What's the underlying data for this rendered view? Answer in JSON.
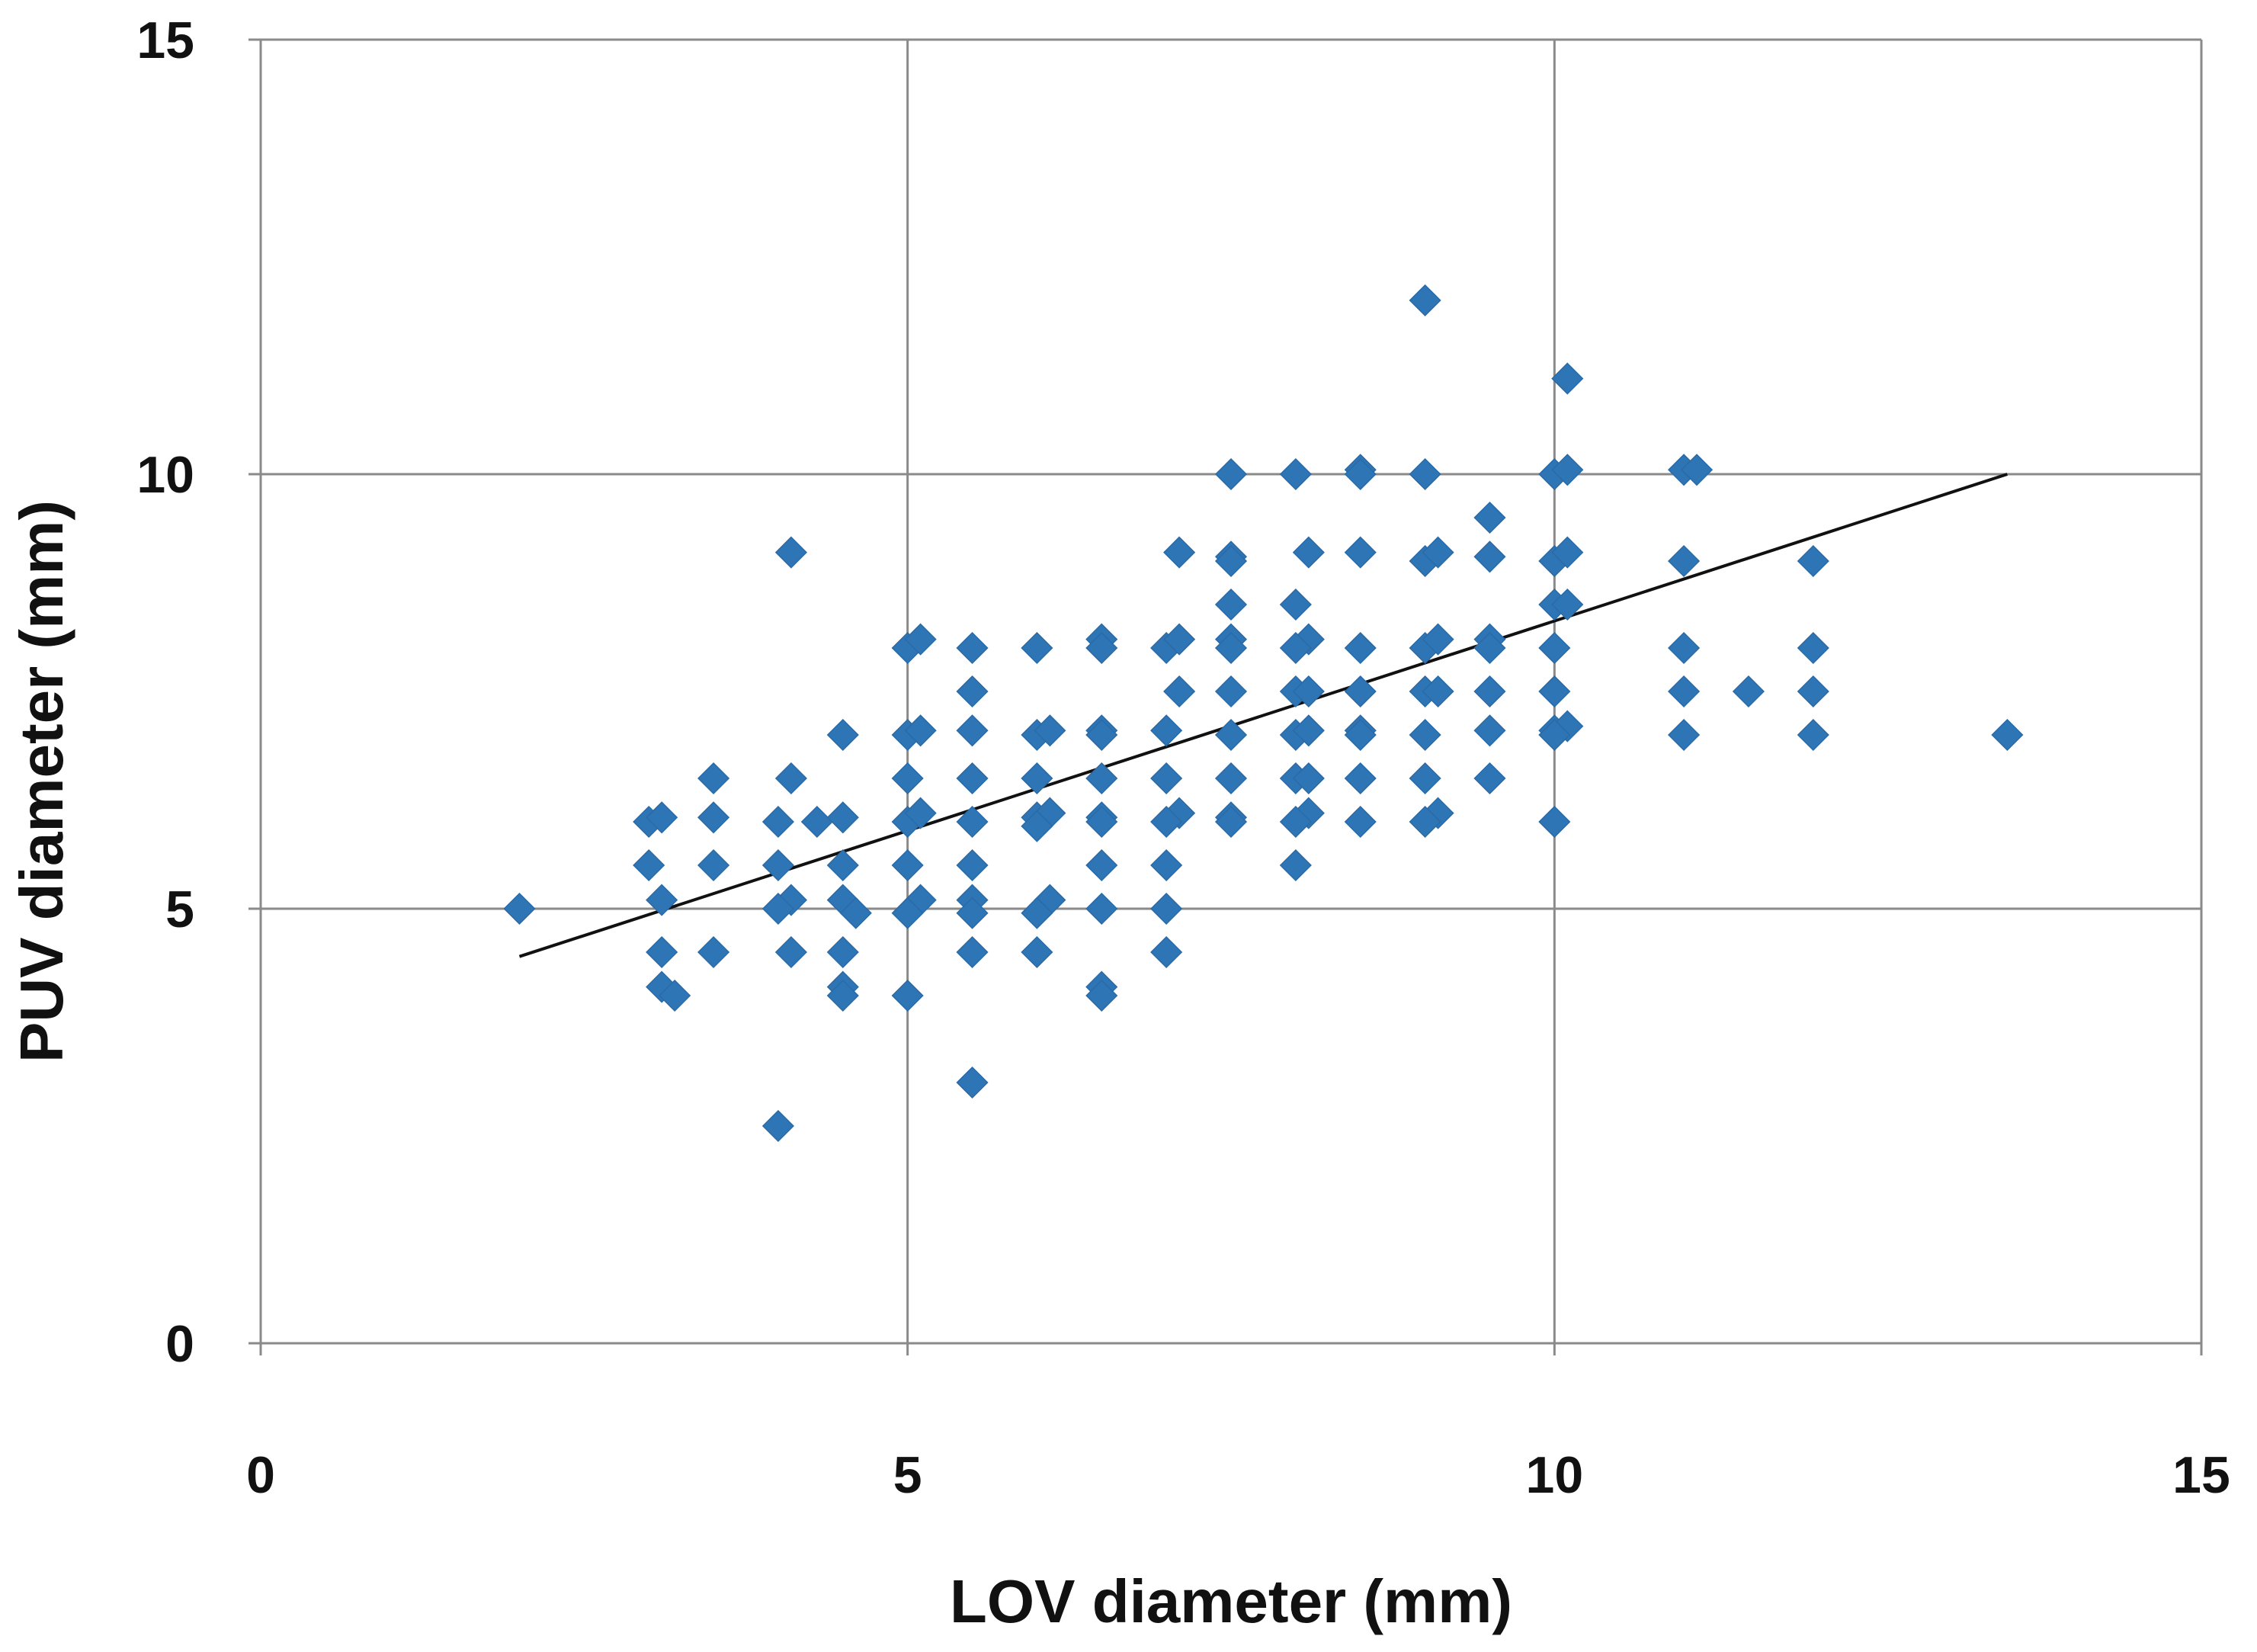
{
  "chart_data": {
    "type": "scatter",
    "xlabel": "LOV diameter  (mm)",
    "ylabel": "PUV diameter  (mm)",
    "xlim": [
      0,
      15
    ],
    "ylim": [
      0,
      15
    ],
    "x_ticks": [
      "0",
      "5",
      "10",
      "15"
    ],
    "y_ticks": [
      "0",
      "5",
      "10",
      "15"
    ],
    "grid": true,
    "marker": "diamond",
    "marker_color": "#2E75B6",
    "trendline": {
      "x": [
        2.0,
        13.5
      ],
      "y": [
        4.45,
        10.0
      ]
    },
    "points": [
      [
        2.0,
        5.0
      ],
      [
        3.0,
        6.0
      ],
      [
        3.1,
        6.05
      ],
      [
        3.0,
        5.5
      ],
      [
        3.1,
        5.1
      ],
      [
        3.1,
        4.5
      ],
      [
        3.1,
        4.1
      ],
      [
        3.2,
        4.0
      ],
      [
        3.5,
        6.5
      ],
      [
        3.5,
        6.05
      ],
      [
        3.5,
        5.5
      ],
      [
        3.5,
        4.5
      ],
      [
        4.1,
        9.1
      ],
      [
        4.0,
        6.0
      ],
      [
        4.1,
        6.5
      ],
      [
        4.0,
        5.5
      ],
      [
        4.1,
        5.1
      ],
      [
        4.0,
        5.0
      ],
      [
        4.1,
        4.5
      ],
      [
        4.0,
        2.5
      ],
      [
        4.3,
        6.0
      ],
      [
        4.5,
        7.0
      ],
      [
        4.5,
        6.05
      ],
      [
        4.5,
        5.5
      ],
      [
        4.5,
        5.1
      ],
      [
        4.6,
        4.95
      ],
      [
        4.5,
        4.5
      ],
      [
        4.5,
        4.1
      ],
      [
        4.5,
        4.0
      ],
      [
        5.0,
        8.0
      ],
      [
        5.1,
        8.1
      ],
      [
        5.0,
        7.0
      ],
      [
        5.1,
        7.05
      ],
      [
        5.0,
        6.5
      ],
      [
        5.0,
        6.0
      ],
      [
        5.1,
        6.1
      ],
      [
        5.0,
        5.5
      ],
      [
        5.1,
        5.1
      ],
      [
        5.0,
        4.95
      ],
      [
        5.0,
        4.0
      ],
      [
        5.5,
        8.0
      ],
      [
        5.5,
        7.5
      ],
      [
        5.5,
        7.05
      ],
      [
        5.5,
        6.5
      ],
      [
        5.5,
        6.0
      ],
      [
        5.5,
        5.5
      ],
      [
        5.5,
        5.1
      ],
      [
        5.5,
        4.95
      ],
      [
        5.5,
        4.5
      ],
      [
        5.5,
        3.0
      ],
      [
        6.0,
        8.0
      ],
      [
        6.0,
        7.0
      ],
      [
        6.1,
        7.05
      ],
      [
        6.0,
        6.5
      ],
      [
        6.0,
        6.05
      ],
      [
        6.1,
        6.1
      ],
      [
        6.0,
        5.95
      ],
      [
        6.1,
        5.1
      ],
      [
        6.0,
        4.95
      ],
      [
        6.0,
        4.5
      ],
      [
        6.5,
        8.1
      ],
      [
        6.5,
        8.0
      ],
      [
        6.5,
        7.05
      ],
      [
        6.5,
        7.0
      ],
      [
        6.5,
        6.5
      ],
      [
        6.5,
        6.05
      ],
      [
        6.5,
        6.0
      ],
      [
        6.5,
        5.5
      ],
      [
        6.5,
        5.0
      ],
      [
        6.5,
        4.1
      ],
      [
        6.5,
        4.0
      ],
      [
        7.0,
        8.0
      ],
      [
        7.1,
        8.1
      ],
      [
        7.1,
        9.1
      ],
      [
        7.1,
        7.5
      ],
      [
        7.0,
        7.05
      ],
      [
        7.0,
        6.5
      ],
      [
        7.1,
        6.1
      ],
      [
        7.0,
        6.0
      ],
      [
        7.0,
        5.5
      ],
      [
        7.0,
        5.0
      ],
      [
        7.0,
        4.5
      ],
      [
        7.5,
        10.0
      ],
      [
        7.5,
        9.05
      ],
      [
        7.5,
        9.0
      ],
      [
        7.5,
        8.5
      ],
      [
        7.5,
        8.1
      ],
      [
        7.5,
        8.0
      ],
      [
        7.5,
        7.5
      ],
      [
        7.5,
        7.0
      ],
      [
        7.5,
        6.5
      ],
      [
        7.5,
        6.05
      ],
      [
        7.5,
        6.0
      ],
      [
        8.0,
        10.0
      ],
      [
        8.1,
        9.1
      ],
      [
        8.0,
        8.5
      ],
      [
        8.1,
        8.1
      ],
      [
        8.0,
        8.0
      ],
      [
        8.0,
        7.5
      ],
      [
        8.1,
        7.5
      ],
      [
        8.0,
        7.0
      ],
      [
        8.1,
        7.05
      ],
      [
        8.0,
        6.5
      ],
      [
        8.1,
        6.5
      ],
      [
        8.1,
        6.1
      ],
      [
        8.0,
        6.0
      ],
      [
        8.0,
        5.5
      ],
      [
        8.5,
        10.05
      ],
      [
        8.5,
        10.0
      ],
      [
        8.5,
        9.1
      ],
      [
        8.5,
        8.0
      ],
      [
        8.5,
        7.5
      ],
      [
        8.5,
        7.05
      ],
      [
        8.5,
        7.0
      ],
      [
        8.5,
        6.5
      ],
      [
        8.5,
        6.0
      ],
      [
        9.0,
        12.0
      ],
      [
        9.0,
        10.0
      ],
      [
        9.0,
        9.0
      ],
      [
        9.1,
        9.1
      ],
      [
        9.0,
        8.0
      ],
      [
        9.1,
        8.1
      ],
      [
        9.0,
        7.5
      ],
      [
        9.1,
        7.5
      ],
      [
        9.0,
        7.0
      ],
      [
        9.0,
        6.5
      ],
      [
        9.1,
        6.1
      ],
      [
        9.0,
        6.0
      ],
      [
        9.5,
        9.5
      ],
      [
        9.5,
        9.05
      ],
      [
        9.5,
        8.1
      ],
      [
        9.5,
        8.0
      ],
      [
        9.5,
        7.5
      ],
      [
        9.5,
        7.05
      ],
      [
        9.5,
        6.5
      ],
      [
        10.0,
        10.0
      ],
      [
        10.1,
        10.05
      ],
      [
        10.1,
        11.1
      ],
      [
        10.0,
        9.0
      ],
      [
        10.1,
        9.1
      ],
      [
        10.0,
        8.5
      ],
      [
        10.1,
        8.5
      ],
      [
        10.0,
        8.0
      ],
      [
        10.0,
        7.5
      ],
      [
        10.0,
        7.05
      ],
      [
        10.1,
        7.1
      ],
      [
        10.0,
        7.0
      ],
      [
        10.0,
        6.0
      ],
      [
        11.0,
        10.05
      ],
      [
        11.1,
        10.05
      ],
      [
        11.0,
        9.0
      ],
      [
        11.0,
        8.0
      ],
      [
        11.0,
        7.5
      ],
      [
        11.0,
        7.0
      ],
      [
        11.5,
        7.5
      ],
      [
        12.0,
        9.0
      ],
      [
        12.0,
        8.0
      ],
      [
        12.0,
        7.5
      ],
      [
        12.0,
        7.0
      ],
      [
        13.5,
        7.0
      ]
    ]
  }
}
